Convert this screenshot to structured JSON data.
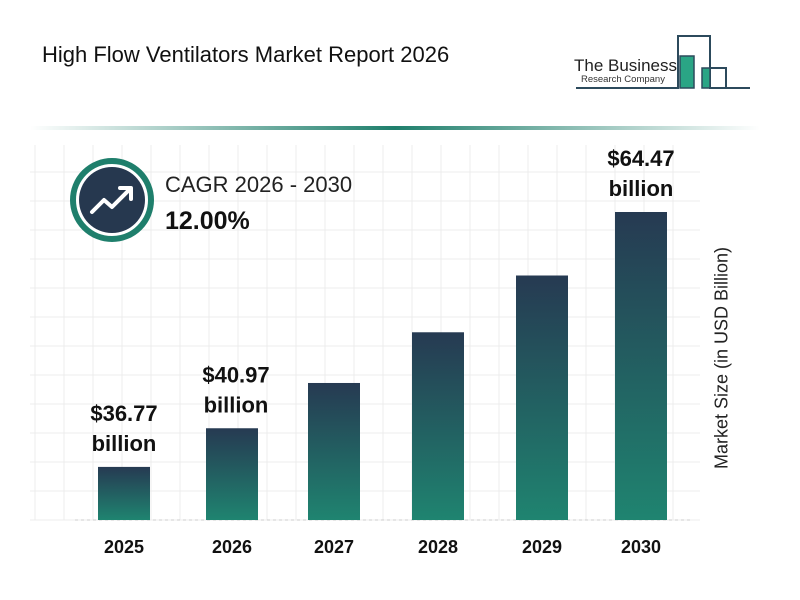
{
  "header": {
    "title": "High Flow Ventilators Market Report 2026"
  },
  "logo": {
    "name": "The Business",
    "sub": "Research Company"
  },
  "cagr": {
    "label": "CAGR 2026 - 2030",
    "value": "12.00%",
    "icon": "trending-up-icon"
  },
  "colors": {
    "bar_top": "#263a52",
    "bar_bottom": "#1f7f6c",
    "accent": "#1f7f6c",
    "circle": "#26384f"
  },
  "chart_data": {
    "type": "bar",
    "categories": [
      "2025",
      "2026",
      "2027",
      "2028",
      "2029",
      "2030"
    ],
    "values": [
      36.77,
      40.97,
      45.89,
      51.4,
      57.57,
      64.47
    ],
    "data_labels": [
      {
        "index": 0,
        "value": "$36.77",
        "unit": "billion"
      },
      {
        "index": 1,
        "value": "$40.97",
        "unit": "billion"
      },
      {
        "index": 5,
        "value": "$64.47",
        "unit": "billion"
      }
    ],
    "ylabel": "Market Size (in USD Billion)",
    "xlabel": "",
    "grid": true,
    "legend": "none"
  }
}
